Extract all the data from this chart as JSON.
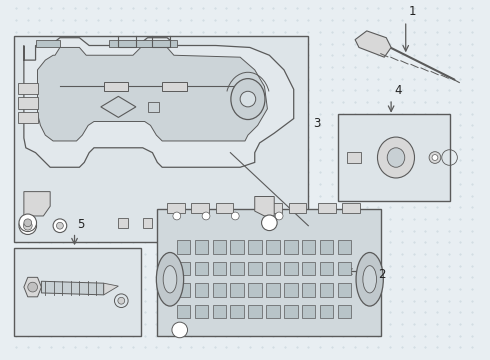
{
  "bg_color": "#e8eef2",
  "line_color": "#5a5a5a",
  "fill_light": "#f0f0f0",
  "fill_mid": "#d8d8d8",
  "fill_dark": "#bbbbbb",
  "fig_width": 4.9,
  "fig_height": 3.6,
  "dpi": 100,
  "label_fontsize": 8.5,
  "label_color": "#222222"
}
